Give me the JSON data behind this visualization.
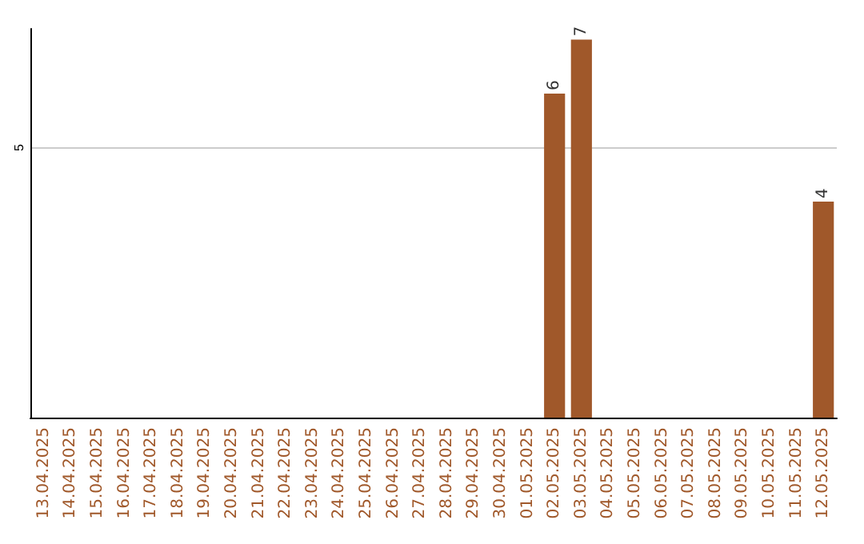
{
  "chart_data": {
    "type": "bar",
    "categories": [
      "13.04.2025",
      "14.04.2025",
      "15.04.2025",
      "16.04.2025",
      "17.04.2025",
      "18.04.2025",
      "19.04.2025",
      "20.04.2025",
      "21.04.2025",
      "22.04.2025",
      "23.04.2025",
      "24.04.2025",
      "25.04.2025",
      "26.04.2025",
      "27.04.2025",
      "28.04.2025",
      "29.04.2025",
      "30.04.2025",
      "01.05.2025",
      "02.05.2025",
      "03.05.2025",
      "04.05.2025",
      "05.05.2025",
      "06.05.2025",
      "07.05.2025",
      "08.05.2025",
      "09.05.2025",
      "10.05.2025",
      "11.05.2025",
      "12.05.2025"
    ],
    "values": [
      null,
      null,
      null,
      null,
      null,
      null,
      null,
      null,
      null,
      null,
      null,
      null,
      null,
      null,
      null,
      null,
      null,
      null,
      null,
      6,
      7,
      null,
      null,
      null,
      null,
      null,
      null,
      null,
      null,
      4
    ],
    "color": "#a0582a",
    "ylim": [
      0,
      7.2
    ],
    "yticks": [
      5
    ],
    "grid": "y",
    "data_labels": true
  }
}
